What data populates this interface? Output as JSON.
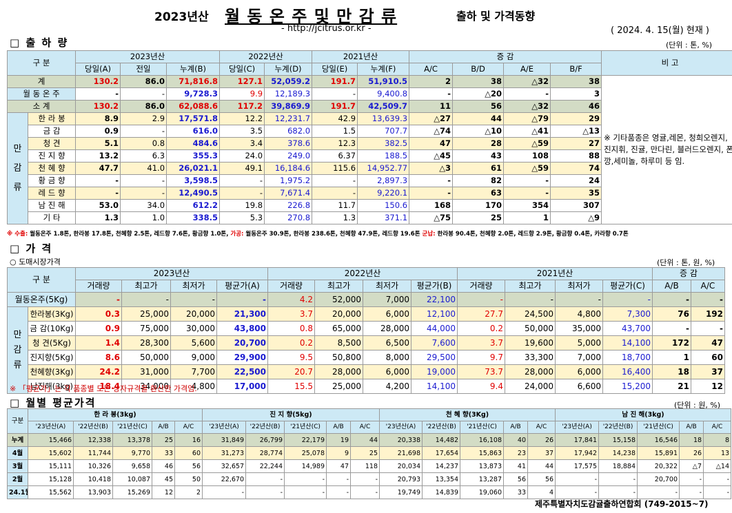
{
  "title": {
    "year": "2023년산",
    "main": "월 동 온 주 및 만 감 류",
    "sub": "출하 및 가격동향",
    "url": "- http://jcitrus.or.kr -",
    "date": "( 2024.  4.  15(월) 현재 )"
  },
  "s1": {
    "title": "□ 출 하 량",
    "unit": "(단위 : 톤, %)",
    "h": {
      "gubun": "구 분",
      "y2023": "2023년산",
      "y2022": "2022년산",
      "y2021": "2021년산",
      "change": "증 감",
      "note": "비 고",
      "cols": [
        "당일(A)",
        "전일",
        "누계(B)",
        "당일(C)",
        "누계(D)",
        "당일(E)",
        "누계(F)",
        "A/C",
        "B/D",
        "A/E",
        "B/F"
      ]
    },
    "rows": [
      {
        "label": "계",
        "v": [
          "130.2",
          "86.0",
          "71,816.8",
          "127.1",
          "52,059.2",
          "191.7",
          "51,910.5",
          "2",
          "38",
          "△32",
          "38"
        ]
      },
      {
        "label": "월 동 온 주",
        "v": [
          "-",
          "-",
          "9,728.3",
          "9.9",
          "12,189.3",
          "-",
          "9,400.8",
          "-",
          "△20",
          "-",
          "3"
        ]
      },
      {
        "label": "소 계",
        "v": [
          "130.2",
          "86.0",
          "62,088.6",
          "117.2",
          "39,869.9",
          "191.7",
          "42,509.7",
          "11",
          "56",
          "△32",
          "46"
        ]
      },
      {
        "label": "한 라 봉",
        "v": [
          "8.9",
          "2.9",
          "17,571.8",
          "12.2",
          "12,231.7",
          "42.9",
          "13,639.3",
          "△27",
          "44",
          "△79",
          "29"
        ]
      },
      {
        "label": "금 감",
        "v": [
          "0.9",
          "-",
          "616.0",
          "3.5",
          "682.0",
          "1.5",
          "707.7",
          "△74",
          "△10",
          "△41",
          "△13"
        ]
      },
      {
        "label": "청 견",
        "v": [
          "5.1",
          "0.8",
          "484.6",
          "3.4",
          "378.6",
          "12.3",
          "382.5",
          "47",
          "28",
          "△59",
          "27"
        ]
      },
      {
        "label": "진 지 향",
        "v": [
          "13.2",
          "6.3",
          "355.3",
          "24.0",
          "249.0",
          "6.37",
          "188.5",
          "△45",
          "43",
          "108",
          "88"
        ]
      },
      {
        "label": "천 혜 향",
        "v": [
          "47.7",
          "41.0",
          "26,021.1",
          "49.1",
          "16,184.6",
          "115.6",
          "14,952.77",
          "△3",
          "61",
          "△59",
          "74"
        ]
      },
      {
        "label": "황 금 향",
        "v": [
          "-",
          "-",
          "3,598.5",
          "-",
          "1,975.2",
          "-",
          "2,897.3",
          "-",
          "82",
          "-",
          "24"
        ]
      },
      {
        "label": "레 드 향",
        "v": [
          "-",
          "-",
          "12,490.5",
          "-",
          "7,671.4",
          "-",
          "9,220.1",
          "-",
          "63",
          "-",
          "35"
        ]
      },
      {
        "label": "남 진 해",
        "v": [
          "53.0",
          "34.0",
          "612.2",
          "19.8",
          "226.8",
          "11.7",
          "150.6",
          "168",
          "170",
          "354",
          "307"
        ]
      },
      {
        "label": "기 타",
        "v": [
          "1.3",
          "1.0",
          "338.5",
          "5.3",
          "270.8",
          "1.3",
          "371.1",
          "△75",
          "25",
          "1",
          "△9"
        ]
      }
    ],
    "mangam": "만 감 류",
    "note": "※ 기타품종은 영귤,레몬, 청희오렌지, 진지휘, 진귤, 만다린, 블러드오렌지, 폰깡,세미놀, 하루미 등 임.",
    "foot1": "※ 수출:",
    "foot1b": " 월동온주 1.8톤, 한라봉 17.8톤, 천혜향 2.5톤, 레드향 7.6톤, 황금향 1.0톤,",
    "foot2": " 가공:",
    "foot2b": " 월동온주 30.9톤, 한라봉 238.6톤, 천혜향 47.9톤, 레드향 19.6톤",
    "foot3": " 군납:",
    "foot3b": " 한라봉 90.4톤, 천혜향 2.0톤, 레드향 2.9톤, 황금향 0.4톤, 카라향 0.7톤"
  },
  "s2": {
    "title": "□ 가  격",
    "sub": "○ 도매시장가격",
    "unit": "(단위 : 톤, 원, %)",
    "h": {
      "gubun": "구 분",
      "y2023": "2023년산",
      "y2022": "2022년산",
      "y2021": "2021년산",
      "change": "증 감",
      "cols": [
        "거래량",
        "최고가",
        "최저가",
        "평균가(A)",
        "거래량",
        "최고가",
        "최저가",
        "평균가(B)",
        "거래량",
        "최고가",
        "최저가",
        "평균가(C)",
        "A/B",
        "A/C"
      ]
    },
    "rows": [
      {
        "label": "월동온주(5Kg)",
        "v": [
          "-",
          "-",
          "-",
          "-",
          "4.2",
          "52,000",
          "7,000",
          "22,100",
          "-",
          "-",
          "-",
          "-",
          "-",
          "-"
        ]
      },
      {
        "label": "한라봉(3Kg)",
        "v": [
          "0.3",
          "25,000",
          "20,000",
          "21,300",
          "3.7",
          "20,000",
          "6,000",
          "12,100",
          "27.7",
          "24,500",
          "4,800",
          "7,300",
          "76",
          "192"
        ]
      },
      {
        "label": "금 감(10Kg)",
        "v": [
          "0.9",
          "75,000",
          "30,000",
          "43,800",
          "0.8",
          "65,000",
          "28,000",
          "44,000",
          "0.2",
          "50,000",
          "35,000",
          "43,700",
          "-",
          "-"
        ]
      },
      {
        "label": "청 견(5Kg)",
        "v": [
          "1.4",
          "28,300",
          "5,600",
          "20,700",
          "0.2",
          "8,500",
          "6,500",
          "7,600",
          "3.7",
          "19,600",
          "5,000",
          "14,100",
          "172",
          "47"
        ]
      },
      {
        "label": "진지향(5Kg)",
        "v": [
          "8.6",
          "50,000",
          "9,000",
          "29,900",
          "9.5",
          "50,800",
          "8,000",
          "29,500",
          "9.7",
          "33,300",
          "7,000",
          "18,700",
          "1",
          "60"
        ]
      },
      {
        "label": "천혜향(3Kg)",
        "v": [
          "24.2",
          "31,000",
          "7,700",
          "22,500",
          "20.7",
          "28,000",
          "6,000",
          "19,000",
          "73.7",
          "28,000",
          "6,000",
          "16,400",
          "18",
          "37"
        ]
      },
      {
        "label": "남진해(3kg)",
        "v": [
          "18.4",
          "34,000",
          "4,800",
          "17,000",
          "15.5",
          "25,000",
          "4,200",
          "14,100",
          "9.4",
          "24,000",
          "6,600",
          "15,200",
          "21",
          "12"
        ]
      }
    ],
    "mangam": "만 감 류",
    "note": "※ 「평균가」는 각 품종별 모든 상자규격을 환산한 가격임."
  },
  "s3": {
    "title": "□ 월별 평균가격",
    "unit": "(단위 : 원, %)",
    "h": {
      "gubun": "구분",
      "groups": [
        "한 라 봉(3kg)",
        "진 지 향(5kg)",
        "천 혜 향(3Kg)",
        "남 진 해(3kg)"
      ],
      "cols": [
        "'23년산(A)",
        "'22년산(B)",
        "'21년산(C)",
        "A/B",
        "A/C"
      ]
    },
    "rows": [
      {
        "label": "누계",
        "v": [
          "15,466",
          "12,338",
          "13,378",
          "25",
          "16",
          "31,849",
          "26,799",
          "22,179",
          "19",
          "44",
          "20,338",
          "14,482",
          "16,108",
          "40",
          "26",
          "17,841",
          "15,158",
          "16,546",
          "18",
          "8"
        ]
      },
      {
        "label": "4월",
        "v": [
          "15,602",
          "11,744",
          "9,770",
          "33",
          "60",
          "31,273",
          "28,774",
          "25,078",
          "9",
          "25",
          "21,698",
          "17,654",
          "15,863",
          "23",
          "37",
          "17,942",
          "14,238",
          "15,891",
          "26",
          "13"
        ]
      },
      {
        "label": "3월",
        "v": [
          "15,111",
          "10,326",
          "9,658",
          "46",
          "56",
          "32,657",
          "22,244",
          "14,989",
          "47",
          "118",
          "20,034",
          "14,237",
          "13,873",
          "41",
          "44",
          "17,575",
          "18,884",
          "20,322",
          "△7",
          "△14"
        ]
      },
      {
        "label": "2월",
        "v": [
          "15,128",
          "10,418",
          "10,087",
          "45",
          "50",
          "22,670",
          "-",
          "-",
          "-",
          "-",
          "20,793",
          "13,354",
          "13,287",
          "56",
          "56",
          "-",
          "-",
          "20,700",
          "-",
          "-"
        ]
      },
      {
        "label": "24.1월",
        "v": [
          "15,562",
          "13,903",
          "15,269",
          "12",
          "2",
          "-",
          "-",
          "-",
          "-",
          "-",
          "19,749",
          "14,839",
          "19,060",
          "33",
          "4",
          "-",
          "-",
          "-",
          "-",
          "-"
        ]
      }
    ]
  },
  "footer": "제주특별자치도감귤출하연합회 (749-2015~7)"
}
